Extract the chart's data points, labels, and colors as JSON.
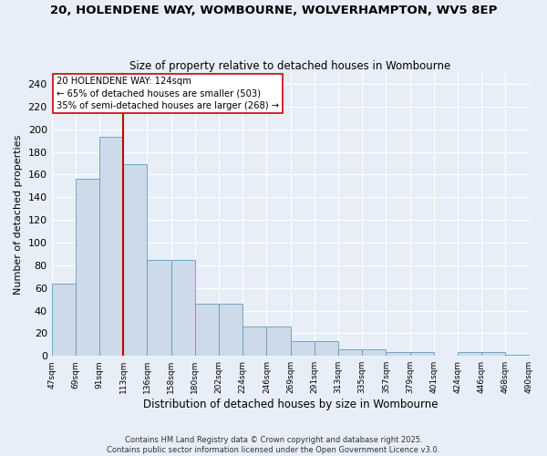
{
  "title": "20, HOLENDENE WAY, WOMBOURNE, WOLVERHAMPTON, WV5 8EP",
  "subtitle": "Size of property relative to detached houses in Wombourne",
  "xlabel": "Distribution of detached houses by size in Wombourne",
  "ylabel": "Number of detached properties",
  "bar_values": [
    64,
    156,
    193,
    169,
    85,
    85,
    46,
    46,
    26,
    26,
    13,
    13,
    6,
    6,
    3,
    3,
    0,
    3,
    3,
    1
  ],
  "categories": [
    "47sqm",
    "69sqm",
    "91sqm",
    "113sqm",
    "136sqm",
    "158sqm",
    "180sqm",
    "202sqm",
    "224sqm",
    "246sqm",
    "269sqm",
    "291sqm",
    "313sqm",
    "335sqm",
    "357sqm",
    "379sqm",
    "401sqm",
    "424sqm",
    "446sqm",
    "468sqm",
    "490sqm"
  ],
  "bar_color": "#cddaea",
  "bar_edge_color": "#6699bb",
  "background_color": "#e8eef8",
  "property_line_x": 3.0,
  "annotation_text": "20 HOLENDENE WAY: 124sqm\n← 65% of detached houses are smaller (503)\n35% of semi-detached houses are larger (268) →",
  "annotation_box_color": "#ffffff",
  "annotation_box_edge": "#cc0000",
  "red_line_color": "#cc0000",
  "ylim": [
    0,
    250
  ],
  "yticks": [
    0,
    20,
    40,
    60,
    80,
    100,
    120,
    140,
    160,
    180,
    200,
    220,
    240
  ],
  "footer_line1": "Contains HM Land Registry data © Crown copyright and database right 2025.",
  "footer_line2": "Contains public sector information licensed under the Open Government Licence v3.0.",
  "figsize": [
    6.0,
    5.0
  ],
  "dpi": 100
}
